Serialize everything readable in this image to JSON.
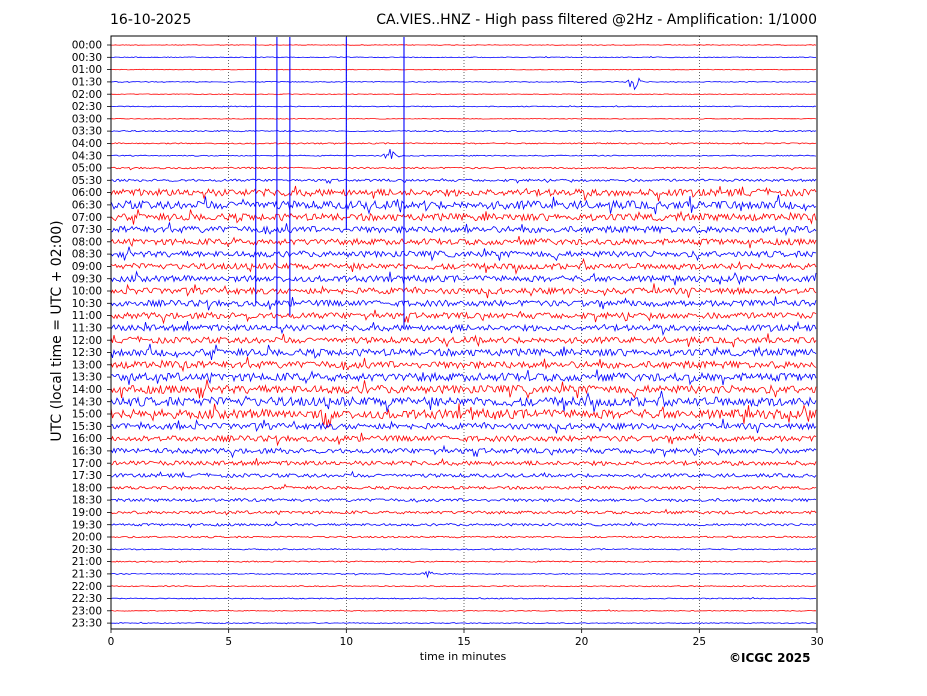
{
  "header": {
    "date": "16-10-2025",
    "title": "CA.VIES..HNZ - High pass filtered @2Hz - Amplification: 1/1000"
  },
  "footer": {
    "copyright": "©ICGC 2025"
  },
  "chart_data": {
    "type": "line",
    "title": "CA.VIES..HNZ - High pass filtered @2Hz - Amplification: 1/1000",
    "xlabel": "time in minutes",
    "ylabel": "UTC (local time = UTC + 02:00)",
    "xlim": [
      0,
      30
    ],
    "x_ticks": [
      0,
      5,
      10,
      15,
      20,
      25,
      30
    ],
    "grid": true,
    "trace_colors": [
      "#ff0000",
      "#0000ff"
    ],
    "rows": [
      "00:00",
      "00:30",
      "01:00",
      "01:30",
      "02:00",
      "02:30",
      "03:00",
      "03:30",
      "04:00",
      "04:30",
      "05:00",
      "05:30",
      "06:00",
      "06:30",
      "07:00",
      "07:30",
      "08:00",
      "08:30",
      "09:00",
      "09:30",
      "10:00",
      "10:30",
      "11:00",
      "11:30",
      "12:00",
      "12:30",
      "13:00",
      "13:30",
      "14:00",
      "14:30",
      "15:00",
      "15:30",
      "16:00",
      "16:30",
      "17:00",
      "17:30",
      "18:00",
      "18:30",
      "19:00",
      "19:30",
      "20:00",
      "20:30",
      "21:00",
      "21:30",
      "22:00",
      "22:30",
      "23:00",
      "23:30"
    ],
    "noise_level": [
      0.3,
      0.4,
      0.3,
      0.4,
      0.3,
      0.4,
      0.3,
      0.6,
      0.6,
      0.5,
      0.8,
      1.2,
      3.5,
      4.0,
      3.5,
      3.2,
      3.0,
      3.0,
      3.0,
      3.0,
      3.0,
      3.0,
      3.0,
      3.0,
      3.0,
      3.5,
      3.5,
      4.0,
      4.0,
      4.5,
      4.5,
      3.0,
      2.8,
      2.5,
      2.2,
      1.8,
      1.5,
      1.5,
      1.5,
      1.2,
      0.8,
      0.6,
      0.6,
      0.5,
      0.5,
      0.5,
      0.4,
      0.4
    ],
    "spikes": [
      {
        "t": 6.15,
        "row_from": 0,
        "row_to": 21
      },
      {
        "t": 7.05,
        "row_from": 0,
        "row_to": 23
      },
      {
        "t": 7.6,
        "row_from": 0,
        "row_to": 22
      },
      {
        "t": 10.0,
        "row_from": 0,
        "row_to": 15
      },
      {
        "t": 12.45,
        "row_from": 0,
        "row_to": 23
      }
    ],
    "events": [
      {
        "row": 3,
        "t": 22.2,
        "amp": 10
      },
      {
        "row": 9,
        "t": 11.9,
        "amp": 8
      },
      {
        "row": 30,
        "t": 9.2,
        "amp": 14
      },
      {
        "row": 43,
        "t": 13.5,
        "amp": 4
      }
    ]
  }
}
